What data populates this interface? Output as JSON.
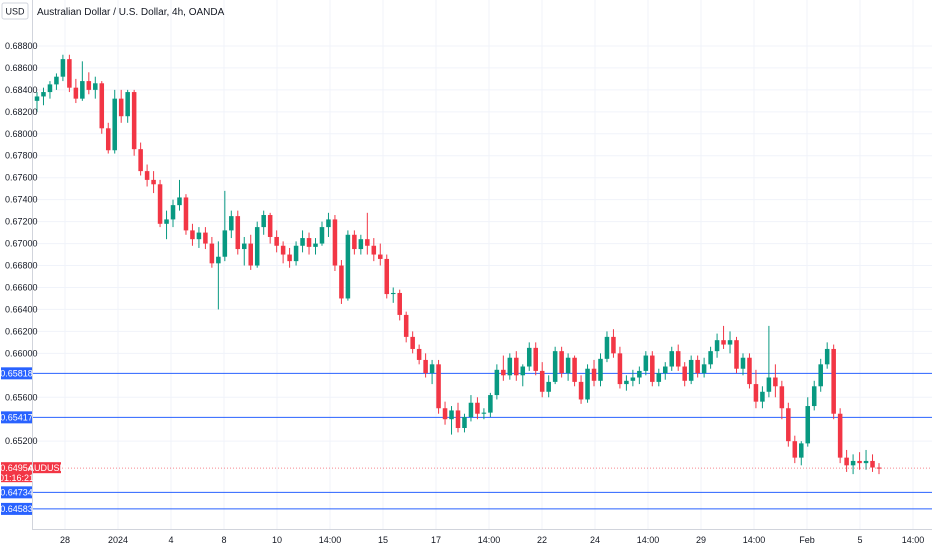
{
  "chart_data": {
    "type": "candlestick",
    "title": "Australian Dollar / U.S. Dollar, 4h, OANDA",
    "currency_label": "USD",
    "symbol_label": "AUDUSD",
    "countdown": "01:16:21",
    "last_price": "0.64954",
    "ylim": [
      0.644,
      0.69
    ],
    "y_ticks": [
      "0.68800",
      "0.68600",
      "0.68400",
      "0.68200",
      "0.68000",
      "0.67800",
      "0.67600",
      "0.67400",
      "0.67200",
      "0.67000",
      "0.66800",
      "0.66600",
      "0.66400",
      "0.66200",
      "0.66000",
      "0.65600",
      "0.65200"
    ],
    "x_ticks": [
      "28",
      "2024",
      "4",
      "8",
      "10",
      "14:00",
      "15",
      "17",
      "14:00",
      "22",
      "24",
      "14:00",
      "29",
      "14:00",
      "Feb",
      "5",
      "14:00"
    ],
    "levels": [
      {
        "label": "0.65818",
        "value": 0.65818
      },
      {
        "label": "0.65417",
        "value": 0.65417
      },
      {
        "label": "0.64734",
        "value": 0.64734
      },
      {
        "label": "0.64583",
        "value": 0.64583
      }
    ],
    "candles": [
      [
        0.683,
        0.6838,
        0.682,
        0.6834
      ],
      [
        0.6834,
        0.6842,
        0.6826,
        0.6838
      ],
      [
        0.6838,
        0.6848,
        0.6832,
        0.6845
      ],
      [
        0.6845,
        0.6855,
        0.684,
        0.6852
      ],
      [
        0.6852,
        0.6872,
        0.6848,
        0.6868
      ],
      [
        0.6868,
        0.6872,
        0.6838,
        0.6842
      ],
      [
        0.6842,
        0.685,
        0.6828,
        0.6832
      ],
      [
        0.6832,
        0.6866,
        0.683,
        0.6848
      ],
      [
        0.6848,
        0.6856,
        0.6836,
        0.684
      ],
      [
        0.684,
        0.6852,
        0.6832,
        0.6846
      ],
      [
        0.6846,
        0.6848,
        0.68,
        0.6805
      ],
      [
        0.6805,
        0.681,
        0.6782,
        0.6785
      ],
      [
        0.6785,
        0.684,
        0.6782,
        0.6832
      ],
      [
        0.6832,
        0.684,
        0.681,
        0.6816
      ],
      [
        0.6816,
        0.684,
        0.681,
        0.6838
      ],
      [
        0.6838,
        0.684,
        0.678,
        0.6786
      ],
      [
        0.6786,
        0.6792,
        0.6762,
        0.6766
      ],
      [
        0.6766,
        0.6772,
        0.6752,
        0.6758
      ],
      [
        0.6758,
        0.6766,
        0.6746,
        0.6754
      ],
      [
        0.6754,
        0.6758,
        0.6715,
        0.6718
      ],
      [
        0.6718,
        0.673,
        0.6704,
        0.6722
      ],
      [
        0.6722,
        0.674,
        0.6715,
        0.6735
      ],
      [
        0.6735,
        0.6758,
        0.673,
        0.6742
      ],
      [
        0.6742,
        0.6745,
        0.6708,
        0.6712
      ],
      [
        0.6712,
        0.6718,
        0.6698,
        0.6704
      ],
      [
        0.6704,
        0.6715,
        0.6696,
        0.671
      ],
      [
        0.671,
        0.6715,
        0.6695,
        0.67
      ],
      [
        0.67,
        0.6706,
        0.6678,
        0.6682
      ],
      [
        0.6682,
        0.6702,
        0.664,
        0.6688
      ],
      [
        0.6688,
        0.6748,
        0.6684,
        0.6712
      ],
      [
        0.6712,
        0.673,
        0.6705,
        0.6725
      ],
      [
        0.6725,
        0.673,
        0.669,
        0.6695
      ],
      [
        0.6695,
        0.6706,
        0.668,
        0.67
      ],
      [
        0.67,
        0.6708,
        0.6676,
        0.668
      ],
      [
        0.668,
        0.672,
        0.6678,
        0.6715
      ],
      [
        0.6715,
        0.673,
        0.6708,
        0.6726
      ],
      [
        0.6726,
        0.6728,
        0.67,
        0.6706
      ],
      [
        0.6706,
        0.6712,
        0.6692,
        0.6698
      ],
      [
        0.6698,
        0.6702,
        0.6682,
        0.669
      ],
      [
        0.669,
        0.6696,
        0.6678,
        0.6684
      ],
      [
        0.6684,
        0.6702,
        0.668,
        0.6698
      ],
      [
        0.6698,
        0.6712,
        0.6692,
        0.6705
      ],
      [
        0.6705,
        0.671,
        0.669,
        0.6697
      ],
      [
        0.6697,
        0.6705,
        0.669,
        0.67
      ],
      [
        0.67,
        0.672,
        0.6698,
        0.6715
      ],
      [
        0.6715,
        0.6728,
        0.6706,
        0.6722
      ],
      [
        0.6722,
        0.6726,
        0.6675,
        0.668
      ],
      [
        0.668,
        0.6685,
        0.6645,
        0.665
      ],
      [
        0.665,
        0.6712,
        0.6648,
        0.6708
      ],
      [
        0.6708,
        0.6712,
        0.669,
        0.6695
      ],
      [
        0.6695,
        0.6708,
        0.669,
        0.6704
      ],
      [
        0.6704,
        0.6728,
        0.669,
        0.6698
      ],
      [
        0.6698,
        0.6705,
        0.6684,
        0.669
      ],
      [
        0.669,
        0.67,
        0.668,
        0.6686
      ],
      [
        0.6686,
        0.669,
        0.665,
        0.6654
      ],
      [
        0.6654,
        0.666,
        0.6646,
        0.6655
      ],
      [
        0.6655,
        0.6658,
        0.663,
        0.6635
      ],
      [
        0.6635,
        0.6638,
        0.661,
        0.6615
      ],
      [
        0.6615,
        0.662,
        0.66,
        0.6604
      ],
      [
        0.6604,
        0.6608,
        0.659,
        0.6594
      ],
      [
        0.6594,
        0.66,
        0.6578,
        0.6582
      ],
      [
        0.6582,
        0.6594,
        0.6572,
        0.659
      ],
      [
        0.659,
        0.6594,
        0.6545,
        0.655
      ],
      [
        0.655,
        0.6556,
        0.6535,
        0.654
      ],
      [
        0.654,
        0.6552,
        0.6526,
        0.6548
      ],
      [
        0.6548,
        0.6555,
        0.6528,
        0.6532
      ],
      [
        0.6532,
        0.6545,
        0.6528,
        0.6542
      ],
      [
        0.6542,
        0.6562,
        0.6538,
        0.6555
      ],
      [
        0.6555,
        0.656,
        0.654,
        0.6545
      ],
      [
        0.6545,
        0.655,
        0.654,
        0.6546
      ],
      [
        0.6546,
        0.6564,
        0.6542,
        0.6562
      ],
      [
        0.6562,
        0.659,
        0.6558,
        0.6585
      ],
      [
        0.6585,
        0.6598,
        0.6575,
        0.658
      ],
      [
        0.658,
        0.66,
        0.6576,
        0.6596
      ],
      [
        0.6596,
        0.6602,
        0.6575,
        0.658
      ],
      [
        0.658,
        0.659,
        0.657,
        0.6588
      ],
      [
        0.6588,
        0.661,
        0.6584,
        0.6605
      ],
      [
        0.6605,
        0.661,
        0.658,
        0.6584
      ],
      [
        0.6584,
        0.6592,
        0.656,
        0.6565
      ],
      [
        0.6565,
        0.658,
        0.656,
        0.6574
      ],
      [
        0.6574,
        0.6606,
        0.6572,
        0.6602
      ],
      [
        0.6602,
        0.6606,
        0.6578,
        0.6582
      ],
      [
        0.6582,
        0.66,
        0.6575,
        0.6596
      ],
      [
        0.6596,
        0.6598,
        0.657,
        0.6574
      ],
      [
        0.6574,
        0.658,
        0.6554,
        0.6558
      ],
      [
        0.6558,
        0.659,
        0.6555,
        0.6586
      ],
      [
        0.6586,
        0.6594,
        0.657,
        0.6575
      ],
      [
        0.6575,
        0.66,
        0.657,
        0.6595
      ],
      [
        0.6595,
        0.662,
        0.6592,
        0.6615
      ],
      [
        0.6615,
        0.6622,
        0.6596,
        0.66
      ],
      [
        0.66,
        0.6606,
        0.6568,
        0.6572
      ],
      [
        0.6572,
        0.658,
        0.6566,
        0.6575
      ],
      [
        0.6575,
        0.6585,
        0.657,
        0.6578
      ],
      [
        0.6578,
        0.6588,
        0.6572,
        0.6584
      ],
      [
        0.6584,
        0.6602,
        0.658,
        0.6598
      ],
      [
        0.6598,
        0.6602,
        0.657,
        0.6574
      ],
      [
        0.6574,
        0.6586,
        0.657,
        0.6582
      ],
      [
        0.6582,
        0.6592,
        0.6576,
        0.6588
      ],
      [
        0.6588,
        0.6606,
        0.6584,
        0.6602
      ],
      [
        0.6602,
        0.6608,
        0.6584,
        0.6588
      ],
      [
        0.6588,
        0.6592,
        0.657,
        0.6575
      ],
      [
        0.6575,
        0.6598,
        0.6572,
        0.6594
      ],
      [
        0.6594,
        0.6598,
        0.6578,
        0.6582
      ],
      [
        0.6582,
        0.6596,
        0.6578,
        0.659
      ],
      [
        0.659,
        0.6606,
        0.6586,
        0.6602
      ],
      [
        0.6602,
        0.6618,
        0.6596,
        0.6612
      ],
      [
        0.6612,
        0.6625,
        0.6604,
        0.6608
      ],
      [
        0.6608,
        0.662,
        0.66,
        0.6612
      ],
      [
        0.6612,
        0.6615,
        0.6582,
        0.6586
      ],
      [
        0.6586,
        0.66,
        0.658,
        0.6596
      ],
      [
        0.6596,
        0.66,
        0.6568,
        0.6572
      ],
      [
        0.6572,
        0.6585,
        0.655,
        0.6556
      ],
      [
        0.6556,
        0.657,
        0.655,
        0.6565
      ],
      [
        0.6565,
        0.6625,
        0.656,
        0.6578
      ],
      [
        0.6578,
        0.659,
        0.656,
        0.657
      ],
      [
        0.657,
        0.6575,
        0.654,
        0.655
      ],
      [
        0.655,
        0.6555,
        0.6515,
        0.652
      ],
      [
        0.652,
        0.6525,
        0.65,
        0.6505
      ],
      [
        0.6505,
        0.652,
        0.6498,
        0.6518
      ],
      [
        0.6518,
        0.656,
        0.6515,
        0.6552
      ],
      [
        0.6552,
        0.6575,
        0.6548,
        0.657
      ],
      [
        0.657,
        0.6595,
        0.6565,
        0.659
      ],
      [
        0.659,
        0.661,
        0.6586,
        0.6604
      ],
      [
        0.6604,
        0.6608,
        0.654,
        0.6545
      ],
      [
        0.6545,
        0.655,
        0.65,
        0.6505
      ],
      [
        0.6505,
        0.6512,
        0.6492,
        0.6498
      ],
      [
        0.6498,
        0.6508,
        0.649,
        0.6502
      ],
      [
        0.6502,
        0.651,
        0.6494,
        0.65
      ],
      [
        0.65,
        0.6512,
        0.6494,
        0.6502
      ],
      [
        0.6502,
        0.6508,
        0.6492,
        0.6496
      ],
      [
        0.6496,
        0.65,
        0.649,
        0.6495
      ]
    ]
  }
}
